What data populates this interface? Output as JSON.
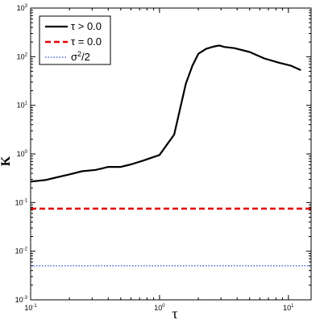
{
  "chart_data": {
    "type": "line",
    "xlabel": "τ",
    "ylabel": "K",
    "xscale": "log",
    "yscale": "log",
    "xlim": [
      0.1,
      15
    ],
    "ylim": [
      0.001,
      1000
    ],
    "x_ticks": [
      {
        "value": 0.1,
        "base": "10",
        "exp": "-1"
      },
      {
        "value": 1,
        "base": "10",
        "exp": "0"
      },
      {
        "value": 10,
        "base": "10",
        "exp": "1"
      }
    ],
    "y_ticks": [
      {
        "value": 0.001,
        "base": "10",
        "exp": "-3"
      },
      {
        "value": 0.01,
        "base": "10",
        "exp": "-2"
      },
      {
        "value": 0.1,
        "base": "10",
        "exp": "-1"
      },
      {
        "value": 1,
        "base": "10",
        "exp": "0"
      },
      {
        "value": 10,
        "base": "10",
        "exp": "1"
      },
      {
        "value": 100,
        "base": "10",
        "exp": "2"
      },
      {
        "value": 1000,
        "base": "10",
        "exp": "3"
      }
    ],
    "grid": false,
    "legend_position": "top-left",
    "series": [
      {
        "name": "τ > 0.0",
        "style": "solid",
        "color": "#000000",
        "x": [
          0.1,
          0.13,
          0.16,
          0.2,
          0.25,
          0.32,
          0.4,
          0.5,
          0.6,
          0.75,
          0.85,
          1.0,
          1.3,
          1.6,
          1.8,
          2.0,
          2.3,
          2.6,
          2.9,
          3.2,
          3.8,
          5.0,
          6.5,
          8.5,
          10.5,
          12.5
        ],
        "y": [
          0.27,
          0.29,
          0.33,
          0.38,
          0.44,
          0.47,
          0.54,
          0.54,
          0.61,
          0.73,
          0.82,
          0.95,
          2.5,
          28,
          65,
          115,
          145,
          160,
          170,
          158,
          150,
          125,
          92,
          75,
          65,
          53
        ]
      },
      {
        "name": "τ = 0.0",
        "style": "dashed",
        "color": "#e00000",
        "x": [
          0.1,
          15
        ],
        "y": [
          0.075,
          0.075
        ]
      },
      {
        "name": "σ2/2",
        "name_base": "σ",
        "name_sup": "2",
        "name_tail": "/2",
        "style": "dotted",
        "color": "#4a6fd8",
        "x": [
          0.1,
          15
        ],
        "y": [
          0.005,
          0.005
        ]
      }
    ]
  }
}
